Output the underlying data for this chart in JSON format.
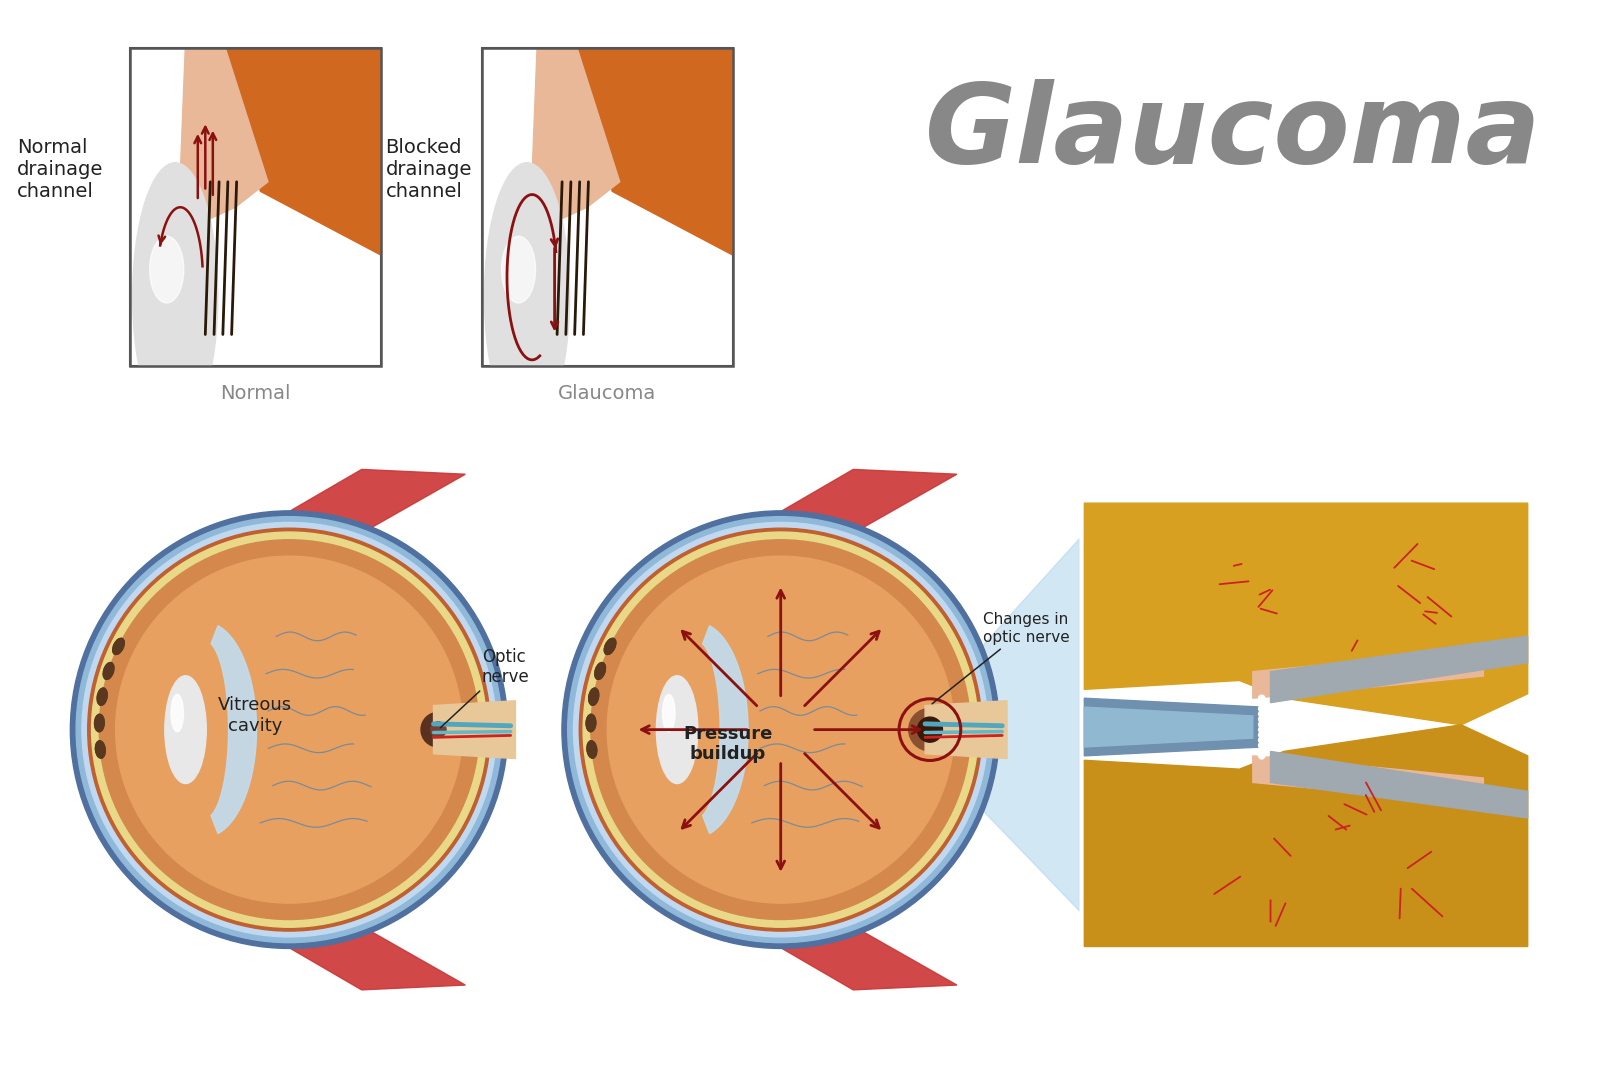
{
  "bg_color": "#ffffff",
  "title": "Glaucoma",
  "title_color": "#888888",
  "title_fontsize": 80,
  "label_normal_drainage": "Normal\ndrainage\nchannel",
  "label_blocked_drainage": "Blocked\ndrainage\nchannel",
  "label_normal": "Normal",
  "label_glaucoma_small": "Glaucoma",
  "label_vitreous": "Vitreous\ncavity",
  "label_optic_nerve": "Optic\nnerve",
  "label_pressure": "Pressure\nbuildup",
  "label_changes": "Changes in\noptic nerve",
  "eye_orange": "#d4884c",
  "eye_orange_dark": "#c06030",
  "eye_orange_light": "#e8a060",
  "eye_yellow_ring": "#e8d888",
  "sclera_blue_outer": "#6080a8",
  "sclera_blue_mid": "#b0cce8",
  "sclera_blue_inner": "#c8dff0",
  "lens_gray": "#d8d8d8",
  "cornea_blue": "#a8d0e8",
  "arrow_color": "#8b1010",
  "nerve_blue": "#3878b0",
  "vessel_red": "#cc2222",
  "muscle_red": "#cc3333",
  "optic_disk_dark": "#4a2818",
  "box_border": "#555555",
  "text_dark": "#222222",
  "text_gray": "#888888",
  "tissue_peach": "#e8b898",
  "tissue_orange": "#d06820",
  "tissue_orange2": "#e09050",
  "iris_orange": "#c87040",
  "ciliary_dark": "#3a2010",
  "trabecular_dark": "#2a1808",
  "optic_yellow": "#d4a030",
  "nerve_detail_yellow": "#e8a820",
  "nerve_detail_orange": "#c87818",
  "nerve_detail_teal": "#60b0b8",
  "nerve_detail_blue_dark": "#4070a0"
}
